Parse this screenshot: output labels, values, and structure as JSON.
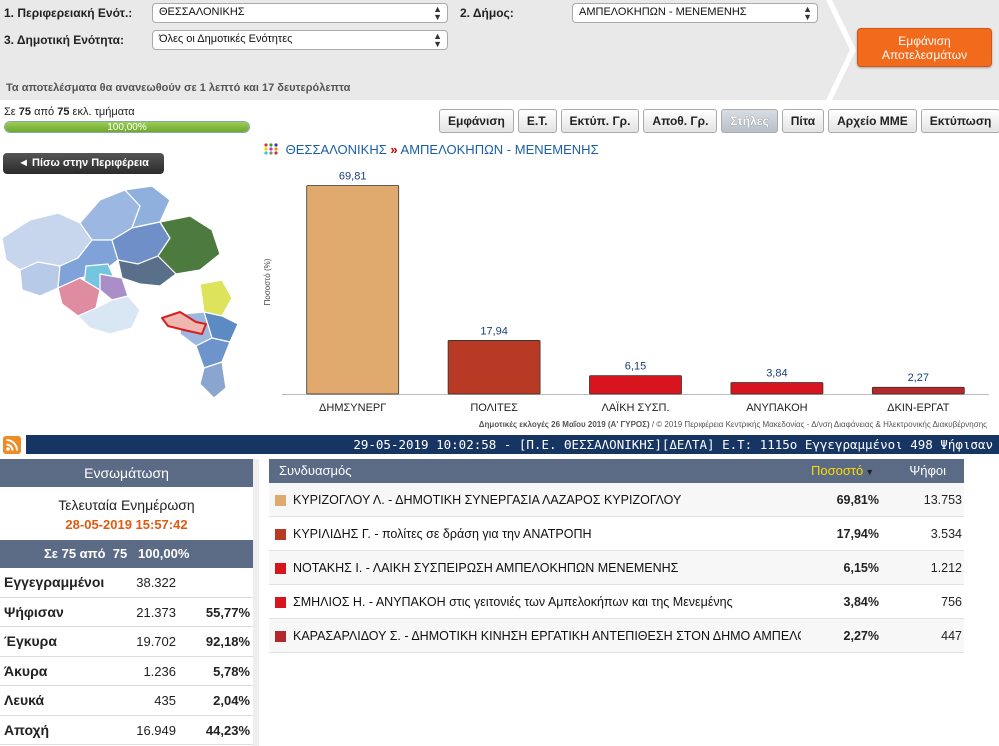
{
  "filters": {
    "region_unit_label": "1. Περιφερειακή Ενότ.:",
    "region_unit_value": "ΘΕΣΣΑΛΟΝΙΚΗΣ",
    "municipality_label": "2. Δήμος:",
    "municipality_value": "ΑΜΠΕΛΟΚΗΠΩΝ - ΜΕΝΕΜΕΝΗΣ",
    "unit_label": "3. Δημοτική Ενότητα:",
    "unit_value": "Όλες οι Δημοτικές Ενότητες",
    "update_note": "Τα αποτελέσματα θα ανανεωθούν σε 1 λεπτό και 17 δευτερόλεπτα",
    "show_button_line1": "Εμφάνιση",
    "show_button_line2": "Αποτελεσμάτων"
  },
  "progress": {
    "prefix": "Σε",
    "counted": "75",
    "middle": "από",
    "total": "75",
    "suffix": "εκλ. τμήματα",
    "percent_text": "100,00%",
    "fraction": 1.0
  },
  "tabs": [
    {
      "label": "Εμφάνιση",
      "active": false
    },
    {
      "label": "Ε.Τ.",
      "active": false
    },
    {
      "label": "Εκτύπ. Γρ.",
      "active": false
    },
    {
      "label": "Αποθ. Γρ.",
      "active": false
    },
    {
      "label": "Στήλες",
      "active": true
    },
    {
      "label": "Πίτα",
      "active": false
    },
    {
      "label": "Αρχείο ΜΜΕ",
      "active": false
    },
    {
      "label": "Εκτύπωση",
      "active": false
    }
  ],
  "back_button": "◄ Πίσω στην Περιφέρεια",
  "breadcrumb": {
    "region": "ΘΕΣΣΑΛΟΝΙΚΗΣ",
    "separator": "»",
    "municipality": "ΑΜΠΕΛΟΚΗΠΩΝ - ΜΕΝΕΜΕΝΗΣ"
  },
  "chart_data": {
    "type": "bar",
    "categories": [
      "ΔΗΜΣΥΝΕΡΓ",
      "ΠΟΛΙΤΕΣ",
      "ΛΑΪΚΗ ΣΥΣΠ.",
      "ΑΝΥΠΑΚΟΗ",
      "ΔΚΙΝ-ΕΡΓΑΤ"
    ],
    "values": [
      69.81,
      17.94,
      6.15,
      3.84,
      2.27
    ],
    "value_labels": [
      "69,81",
      "17,94",
      "6,15",
      "3,84",
      "2,27"
    ],
    "colors": [
      "#e0a96d",
      "#b83a25",
      "#d8151e",
      "#d8151e",
      "#b3282a"
    ],
    "ylabel": "Ποσοστό (%)",
    "xlabel": "",
    "title": "",
    "ylim": [
      0,
      75
    ],
    "grid": false
  },
  "footnote": "Δημοτικές εκλογές 26 Μαΐου 2019 (Α' ΓΥΡΟΣ) / © 2019 Περιφέρεια Κεντρικής Μακεδονίας - Δ/νση Διαφάνειας & Ηλεκτρονικής Διακυβέρνησης",
  "footnote_bold": "Δημοτικές εκλογές 26 Μαΐου 2019 (Α' ΓΥΡΟΣ)",
  "footnote_rest": " / © 2019 Περιφέρεια Κεντρικής Μακεδονίας - Δ/νση Διαφάνειας & Ηλεκτρονικής Διακυβέρνησης",
  "ticker": "29-05-2019 10:02:58 - [Π.Ε. ΘΕΣΣΑΛΟΝΙΚΗΣ][ΔΕΛΤΑ] Ε.Τ: 1115ο Εγγεγραμμένοι 498 Ψήφισαν",
  "summary": {
    "header": "Ενσωμάτωση",
    "last_update_label": "Τελευταία Ενημέρωση",
    "last_update_value": "28-05-2019 15:57:42",
    "count_line": "Σε 75 από  75   100,00%",
    "rows": [
      {
        "label": "Εγγεγραμμένοι",
        "value": "38.322",
        "pct": ""
      },
      {
        "label": "Ψήφισαν",
        "value": "21.373",
        "pct": "55,77%"
      },
      {
        "label": "Έγκυρα",
        "value": "19.702",
        "pct": "92,18%"
      },
      {
        "label": "Άκυρα",
        "value": "1.236",
        "pct": "5,78%"
      },
      {
        "label": "Λευκά",
        "value": "435",
        "pct": "2,04%"
      },
      {
        "label": "Αποχή",
        "value": "16.949",
        "pct": "44,23%"
      }
    ]
  },
  "results": {
    "col_party": "Συνδυασμός",
    "col_pct": "Ποσοστό",
    "col_votes": "Ψήφοι",
    "rows": [
      {
        "color": "#e0a96d",
        "name": "ΚΥΡΙΖΟΓΛΟΥ Λ. - ΔΗΜΟΤΙΚΗ ΣΥΝΕΡΓΑΣΙΑ ΛΑΖΑΡΟΣ ΚΥΡΙΖΟΓΛΟΥ",
        "pct": "69,81%",
        "votes": "13.753"
      },
      {
        "color": "#b83a25",
        "name": "ΚΥΡΙΛΙΔΗΣ Γ. - πολίτες σε δράση για την ΑΝΑΤΡΟΠΗ",
        "pct": "17,94%",
        "votes": "3.534"
      },
      {
        "color": "#d8151e",
        "name": "ΝΟΤΑΚΗΣ Ι. - ΛΑΙΚΗ ΣΥΣΠΕΙΡΩΣΗ ΑΜΠΕΛΟΚΗΠΩΝ ΜΕΝΕΜΕΝΗΣ",
        "pct": "6,15%",
        "votes": "1.212"
      },
      {
        "color": "#d8151e",
        "name": "ΣΜΗΛΙΟΣ Η. - ΑΝΥΠΑΚΟΗ στις γειτονιές των Αμπελοκήπων και της Μενεμένης",
        "pct": "3,84%",
        "votes": "756"
      },
      {
        "color": "#b3282a",
        "name": "ΚΑΡΑΣΑΡΛΙΔΟΥ Σ. - ΔΗΜΟΤΙΚΗ ΚΙΝΗΣΗ ΕΡΓΑΤΙΚΗ ΑΝΤΕΠΙΘΕΣΗ ΣΤΟΝ ΔΗΜΟ ΑΜΠΕΛΟΚΗΠΩΝ",
        "pct": "2,27%",
        "votes": "447"
      }
    ]
  }
}
